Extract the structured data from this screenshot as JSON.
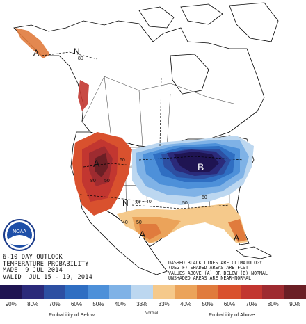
{
  "outlook": {
    "line1": "6-10 DAY OUTLOOK",
    "line2": "TEMPERATURE PROBABILITY",
    "line3": "MADE  9 JUL 2014",
    "line4": "VALID  JUL 15 - 19, 2014"
  },
  "notes": {
    "line1": "DASHED BLACK LINES ARE CLIMATOLOGY",
    "line2": "(DEG F) SHADED AREAS ARE FCST",
    "line3": "VALUES ABOVE (A) OR BELOW (B) NORMAL",
    "line4": "UNSHADED AREAS ARE NEAR-NORMAL"
  },
  "logo_text": "NOAA",
  "map_labels": {
    "above_west": "A",
    "above_south": "A",
    "above_southeast": "A",
    "above_alaska": "A",
    "below_midwest": "B",
    "normal_alaska": "N",
    "normal_plains": "N",
    "iso_50_west": "50",
    "iso_60_west": "60",
    "iso_80_west": "80",
    "iso_40_plains": "40",
    "iso_33_plains": "33",
    "iso_40_gulf": "40",
    "iso_50_gulf": "50",
    "iso_50_east": "50",
    "iso_60_east": "60",
    "iso_80_alaska": "80"
  },
  "legend": {
    "swatches": [
      {
        "label": "90%",
        "color": "#1f1452"
      },
      {
        "label": "80%",
        "color": "#2b2a7a"
      },
      {
        "label": "70%",
        "color": "#2d4fa2"
      },
      {
        "label": "60%",
        "color": "#2f6ec2"
      },
      {
        "label": "50%",
        "color": "#4d90d9"
      },
      {
        "label": "40%",
        "color": "#7fb2e6"
      },
      {
        "label": "33%",
        "color": "#bcd7f0"
      },
      {
        "label": "33%",
        "color": "#f5c98b"
      },
      {
        "label": "40%",
        "color": "#eba35a"
      },
      {
        "label": "50%",
        "color": "#e07b3d"
      },
      {
        "label": "60%",
        "color": "#d9512e"
      },
      {
        "label": "70%",
        "color": "#c23630"
      },
      {
        "label": "80%",
        "color": "#9e2b30"
      },
      {
        "label": "90%",
        "color": "#6b1f25"
      }
    ],
    "caption_below": "Probability of Below",
    "caption_normal": "Normal",
    "caption_above": "Probability of Above"
  }
}
